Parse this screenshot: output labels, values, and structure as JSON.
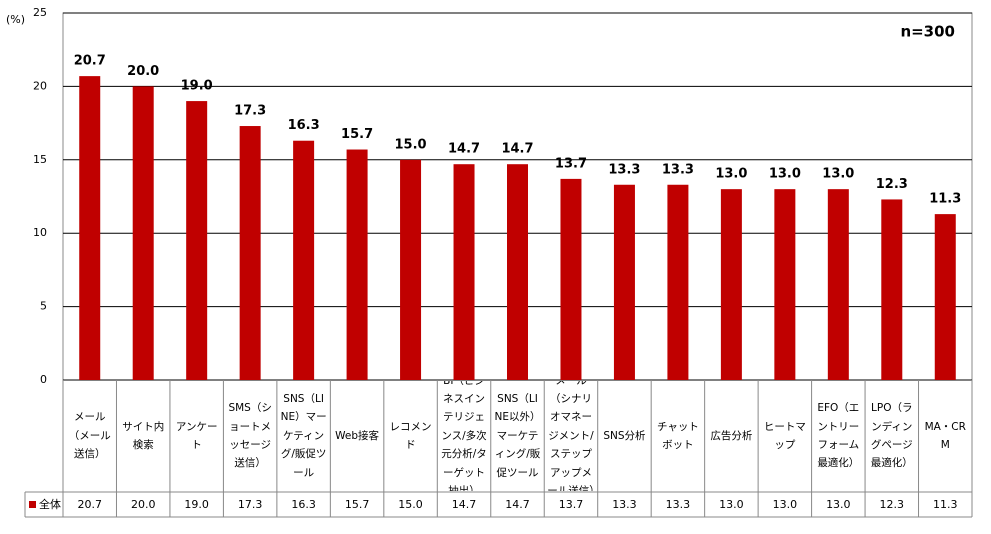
{
  "chart_data": {
    "type": "bar",
    "y_unit_label": "(%)",
    "annotation": "n=300",
    "categories": [
      "メール（メール送信）",
      "サイト内検索",
      "アンケート",
      "SMS（ショートメッセージ送信）",
      "SNS（LINE）マーケティング/販促ツール",
      "Web接客",
      "レコメンド",
      "BI（ビジネスインテリジェンス/多次元分析/ターゲット抽出）",
      "SNS（LINE以外）マーケティング/販促ツール",
      "メール（シナリオマネージメント/ステップアップメール送信）",
      "SNS分析",
      "チャットボット",
      "広告分析",
      "ヒートマップ",
      "EFO（エントリーフォーム最適化）",
      "LPO（ランディングページ最適化）",
      "MA・CRM"
    ],
    "series": [
      {
        "name": "全体",
        "color": "#c00000",
        "values": [
          20.7,
          20.0,
          19.0,
          17.3,
          16.3,
          15.7,
          15.0,
          14.7,
          14.7,
          13.7,
          13.3,
          13.3,
          13.0,
          13.0,
          13.0,
          12.3,
          11.3
        ],
        "value_labels": [
          "20.7",
          "20.0",
          "19.0",
          "17.3",
          "16.3",
          "15.7",
          "15.0",
          "14.7",
          "14.7",
          "13.7",
          "13.3",
          "13.3",
          "13.0",
          "13.0",
          "13.0",
          "12.3",
          "11.3"
        ]
      }
    ],
    "ylim": [
      0,
      25
    ],
    "yticks": [
      0,
      5,
      10,
      15,
      20,
      25
    ],
    "grid": true
  }
}
